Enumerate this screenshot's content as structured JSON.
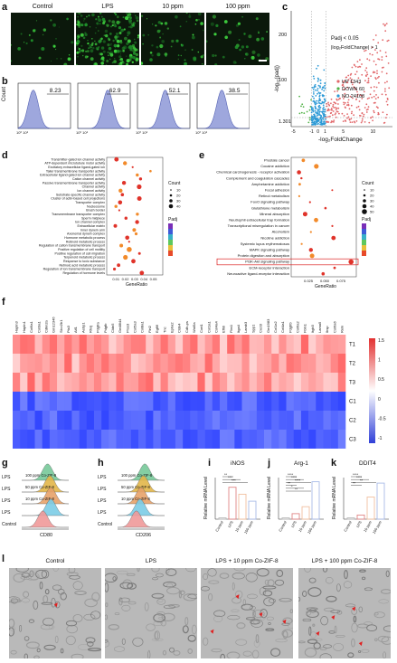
{
  "panels": {
    "a": "a",
    "b": "b",
    "c": "c",
    "d": "d",
    "e": "e",
    "f": "f",
    "g": "g",
    "h": "h",
    "i": "i",
    "j": "j",
    "k": "k",
    "l": "l"
  },
  "a": {
    "conditions": [
      "Control",
      "LPS",
      "10 ppm",
      "100 ppm"
    ]
  },
  "b": {
    "percents": [
      "8.23",
      "62.9",
      "52.1",
      "38.5"
    ],
    "ylabel": "Count"
  },
  "c": {
    "legend": {
      "padj": "Padj < 0.05",
      "lfc": "|log₂FoldChange| > 1"
    },
    "counts": {
      "up": "UP 1343",
      "down": "DOWN 60",
      "no": "NO 24108"
    },
    "ylabel": "-log₁₀(padj)",
    "xlabel": "-log₂FoldChange",
    "yticks": [
      "200",
      "100",
      "1.301"
    ],
    "xticks": [
      "-5",
      "-1",
      "0",
      "1",
      "5",
      "10"
    ]
  },
  "d": {
    "terms": [
      "Transmitter-gated ion channel activity",
      "ATP-dependent microtubule motor activity",
      "Excitatory extracellular ligand-gated ion",
      "Tailer transmembrane transporter activity",
      "Extracellular ligand-gated ion channel activity",
      "Cation channel activity",
      "Passive transmembrane transporter activity",
      "Channel activity",
      "Ion channel activity",
      "Substrate-specific channel activity",
      "Cluster of actin-based cell projections",
      "Transporter complex",
      "Nucleosome",
      "Brush border",
      "Transmembrane transporter complex",
      "Sperm midpiece",
      "Ion channel complex",
      "Extracellular matrix",
      "Inner dynein arm",
      "Axonemal dynein complex",
      "Hormone metabolic process",
      "Retinoid metabolic process",
      "Regulation of cation transmembrane transport",
      "Positive regulation of cell motility",
      "Positive regulation of cell migration",
      "Terpenoid metabolic process",
      "Response to toxic substance",
      "Retinoic acid metabolic process",
      "Regulation of ion transmembrane transport",
      "Regulation of hormone levels"
    ],
    "xlabel": "GeneRatio",
    "xticks": [
      "0.01",
      "0.02",
      "0.03",
      "0.04",
      "0.05"
    ],
    "count_title": "Count",
    "count_values": [
      "10",
      "20",
      "30",
      "40"
    ],
    "padj_title": "Padj"
  },
  "e": {
    "terms": [
      "Prostate cancer",
      "Cocaine addiction",
      "Chemical carcinogenesis - receptor activation",
      "Complement and coagulation cascades",
      "Amphetamine addiction",
      "Focal adhesion",
      "Retinol metabolism",
      "FoxO signaling pathway",
      "Glutathione metabolism",
      "Mineral absorption",
      "Neutrophil extracellular trap formation",
      "Transcriptional misregulation in cancer",
      "Alcoholism",
      "Nicotine addiction",
      "Systemic lupus erythematosus",
      "MAPK signaling pathway",
      "Protein digestion and absorption",
      "PI3K-Akt signaling pathway",
      "ECM-receptor interaction",
      "Neuroactive ligand-receptor interaction"
    ],
    "xlabel": "GeneRatio",
    "xticks": [
      "0.025",
      "0.050",
      "0.075"
    ],
    "count_title": "Count",
    "count_values": [
      "10",
      "20",
      "30",
      "40",
      "50"
    ],
    "padj_title": "Padj"
  },
  "f": {
    "genes": [
      "Hapln3",
      "Hapln1",
      "Col6a1",
      "Col3a1",
      "Cdkn2a",
      "Gm12346",
      "Slco2b1",
      "Ptx3",
      "Aif1",
      "Aebp1",
      "Rhoj",
      "Pdgfra",
      "Pdgfb",
      "Cldn5",
      "Gm8844",
      "Prss3",
      "Col5a3",
      "Col8a1",
      "Flrt2",
      "Egfl6",
      "Tnc",
      "Epha2",
      "Cldn4",
      "Cdh-ps",
      "Wnt5a",
      "Cort1",
      "Col1a1",
      "Col4a4",
      "Efhb",
      "Fbn1",
      "Itga4",
      "Lamb3",
      "Spp1",
      "Cxcl3",
      "Gm1983",
      "Col1a2",
      "Col4a1",
      "Pdgfrb",
      "Col6a2",
      "Fbln1",
      "Itgb3",
      "Lama5",
      "Ibsp",
      "Col6a6",
      "Reln"
    ],
    "rows": [
      "T1",
      "T2",
      "T3",
      "C1",
      "C2",
      "C3"
    ],
    "scale": [
      "1.5",
      "1",
      "0.5",
      "0",
      "-0.5",
      "-1"
    ]
  },
  "g": {
    "rows": [
      {
        "left": "LPS",
        "right": "100 ppm Co-ZIF-8"
      },
      {
        "left": "LPS",
        "right": "50 ppm Co-ZIF-8"
      },
      {
        "left": "LPS",
        "right": "10 ppm Co-ZIF-8"
      },
      {
        "left": "LPS",
        "right": ""
      },
      {
        "left": "Control",
        "right": ""
      }
    ],
    "xlabel": "CD80"
  },
  "h": {
    "rows": [
      {
        "left": "LPS",
        "right": "100 ppm Co-ZIF-8"
      },
      {
        "left": "LPS",
        "right": "50 ppm Co-ZIF-8"
      },
      {
        "left": "LPS",
        "right": "10 ppm Co-ZIF-8"
      },
      {
        "left": "LPS",
        "right": ""
      },
      {
        "left": "Control",
        "right": ""
      }
    ],
    "xlabel": "CD206"
  },
  "i": {
    "title": "iNOS",
    "ylabel": "Relative mRNA Level",
    "categories": [
      "Control",
      "LPS",
      "10 ppm",
      "100 ppm"
    ],
    "sig": [
      "**",
      "***",
      "***"
    ]
  },
  "j": {
    "title": "Arg-1",
    "ylabel": "Relative mRNA Level",
    "categories": [
      "Control",
      "LPS",
      "10 ppm",
      "100 ppm"
    ],
    "sig": [
      "****",
      "****",
      "****",
      "**",
      "*",
      "**"
    ]
  },
  "k": {
    "title": "DDIT4",
    "ylabel": "Relative mRNA Level",
    "categories": [
      "Control",
      "LPS",
      "10 ppm",
      "100 ppm"
    ],
    "sig": [
      "****",
      "****",
      "**",
      "**"
    ]
  },
  "l": {
    "conditions": [
      "Control",
      "LPS",
      "LPS + 10 ppm Co-ZIF-8",
      "LPS + 100 ppm Co-ZIF-8"
    ]
  },
  "chart_data": [
    {
      "type": "area",
      "title": "",
      "panel": "b",
      "series": [
        {
          "name": "",
          "percent": 8.23
        },
        {
          "name": "",
          "percent": 62.9
        },
        {
          "name": "",
          "percent": 52.1
        },
        {
          "name": "",
          "percent": 38.5
        }
      ],
      "ylabel": "Count"
    },
    {
      "type": "bar",
      "panel": "i",
      "title": "iNOS",
      "categories": [
        "Control",
        "LPS",
        "10 ppm",
        "100 ppm"
      ],
      "values": [
        0.1,
        2.3,
        1.8,
        1.3
      ],
      "ylabel": "Relative mRNA Level"
    },
    {
      "type": "bar",
      "panel": "j",
      "title": "Arg-1",
      "categories": [
        "Control",
        "LPS",
        "10 ppm",
        "100 ppm"
      ],
      "values": [
        0.1,
        0.4,
        0.9,
        2.7
      ],
      "ylabel": "Relative mRNA Level"
    },
    {
      "type": "bar",
      "panel": "k",
      "title": "DDIT4",
      "categories": [
        "Control",
        "LPS",
        "10 ppm",
        "100 ppm"
      ],
      "values": [
        0.1,
        0.3,
        1.6,
        2.6
      ],
      "ylabel": "Relative mRNA Level"
    }
  ]
}
